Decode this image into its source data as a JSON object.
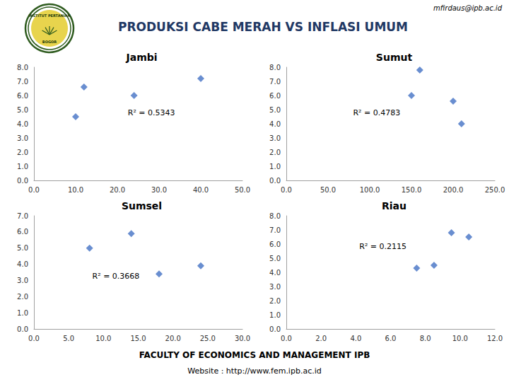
{
  "title": "PRODUKSI CABE MERAH VS INFLASI UMUM",
  "annotations": [
    "mfirdaus@ipb.ac.id",
    "INSTITUT PERTANIAN",
    "BOGOR",
    "FACULTY OF ECONOMICS AND MANAGEMENT IPB",
    "Website : http://www.fem.ipb.ac.id"
  ],
  "chart_data": [
    {
      "type": "scatter",
      "title": "Jambi",
      "x": [
        10,
        12,
        24,
        40
      ],
      "values": [
        4.5,
        6.6,
        6.0,
        7.2
      ],
      "xlim": [
        0,
        50
      ],
      "ylim": [
        0,
        8.0
      ],
      "xticks": [
        {
          "value": 0,
          "label": "0.0"
        },
        {
          "value": 10,
          "label": "10.0"
        },
        {
          "value": 20,
          "label": "20.0"
        },
        {
          "value": 30,
          "label": "30.0"
        },
        {
          "value": 40,
          "label": "40.0"
        },
        {
          "value": 50,
          "label": "50.0"
        }
      ],
      "yticks": [
        {
          "value": 0,
          "label": "0.0"
        },
        {
          "value": 1,
          "label": "1.0"
        },
        {
          "value": 2,
          "label": "2.0"
        },
        {
          "value": 3,
          "label": "3.0"
        },
        {
          "value": 4,
          "label": "4.0"
        },
        {
          "value": 5,
          "label": "5.0"
        },
        {
          "value": 6,
          "label": "6.0"
        },
        {
          "value": 7,
          "label": "7.0"
        },
        {
          "value": 8,
          "label": "8.0"
        }
      ],
      "color": "#4472C4",
      "marker": "diamond",
      "grid": false,
      "annotations": [
        "R² = 0.5343"
      ]
    },
    {
      "type": "scatter",
      "title": "Sumut",
      "x": [
        150,
        160,
        200,
        210
      ],
      "values": [
        6.0,
        7.8,
        5.6,
        4.0
      ],
      "xlim": [
        0,
        250
      ],
      "ylim": [
        0,
        8.0
      ],
      "xticks": [
        {
          "value": 0,
          "label": "0.0"
        },
        {
          "value": 50,
          "label": "50.0"
        },
        {
          "value": 100,
          "label": "100.0"
        },
        {
          "value": 150,
          "label": "150.0"
        },
        {
          "value": 200,
          "label": "200.0"
        },
        {
          "value": 250,
          "label": "250.0"
        }
      ],
      "yticks": [
        {
          "value": 0,
          "label": "0.0"
        },
        {
          "value": 1,
          "label": "1.0"
        },
        {
          "value": 2,
          "label": "2.0"
        },
        {
          "value": 3,
          "label": "3.0"
        },
        {
          "value": 4,
          "label": "4.0"
        },
        {
          "value": 5,
          "label": "5.0"
        },
        {
          "value": 6,
          "label": "6.0"
        },
        {
          "value": 7,
          "label": "7.0"
        },
        {
          "value": 8,
          "label": "8.0"
        }
      ],
      "color": "#4472C4",
      "marker": "diamond",
      "grid": false,
      "annotations": [
        "R² = 0.4783"
      ]
    },
    {
      "type": "scatter",
      "title": "Sumsel",
      "x": [
        8,
        14,
        18,
        24
      ],
      "values": [
        5.0,
        5.9,
        3.4,
        3.9
      ],
      "xlim": [
        0,
        30
      ],
      "ylim": [
        0,
        7.0
      ],
      "xticks": [
        {
          "value": 0,
          "label": "0.0"
        },
        {
          "value": 5,
          "label": "5.0"
        },
        {
          "value": 10,
          "label": "10.0"
        },
        {
          "value": 15,
          "label": "15.0"
        },
        {
          "value": 20,
          "label": "20.0"
        },
        {
          "value": 25,
          "label": "25.0"
        },
        {
          "value": 30,
          "label": "30.0"
        }
      ],
      "yticks": [
        {
          "value": 0,
          "label": "0.0"
        },
        {
          "value": 1,
          "label": "1.0"
        },
        {
          "value": 2,
          "label": "2.0"
        },
        {
          "value": 3,
          "label": "3.0"
        },
        {
          "value": 4,
          "label": "4.0"
        },
        {
          "value": 5,
          "label": "5.0"
        },
        {
          "value": 6,
          "label": "6.0"
        },
        {
          "value": 7,
          "label": "7.0"
        }
      ],
      "color": "#4472C4",
      "marker": "diamond",
      "grid": false,
      "annotations": [
        "R² = 0.3668"
      ]
    },
    {
      "type": "scatter",
      "title": "Riau",
      "x": [
        7.5,
        8.5,
        9.5,
        10.5
      ],
      "values": [
        4.3,
        4.5,
        6.8,
        6.5
      ],
      "xlim": [
        0,
        12
      ],
      "ylim": [
        0,
        8.0
      ],
      "xticks": [
        {
          "value": 0,
          "label": "0.0"
        },
        {
          "value": 2,
          "label": "2.0"
        },
        {
          "value": 4,
          "label": "4.0"
        },
        {
          "value": 6,
          "label": "6.0"
        },
        {
          "value": 8,
          "label": "8.0"
        },
        {
          "value": 10,
          "label": "10.0"
        },
        {
          "value": 12,
          "label": "12.0"
        }
      ],
      "yticks": [
        {
          "value": 0,
          "label": "0.0"
        },
        {
          "value": 1,
          "label": "1.0"
        },
        {
          "value": 2,
          "label": "2.0"
        },
        {
          "value": 3,
          "label": "3.0"
        },
        {
          "value": 4,
          "label": "4.0"
        },
        {
          "value": 5,
          "label": "5.0"
        },
        {
          "value": 6,
          "label": "6.0"
        },
        {
          "value": 7,
          "label": "7.0"
        },
        {
          "value": 8,
          "label": "8.0"
        }
      ],
      "color": "#4472C4",
      "marker": "diamond",
      "grid": false,
      "annotations": [
        "R² = 0.2115"
      ]
    }
  ]
}
